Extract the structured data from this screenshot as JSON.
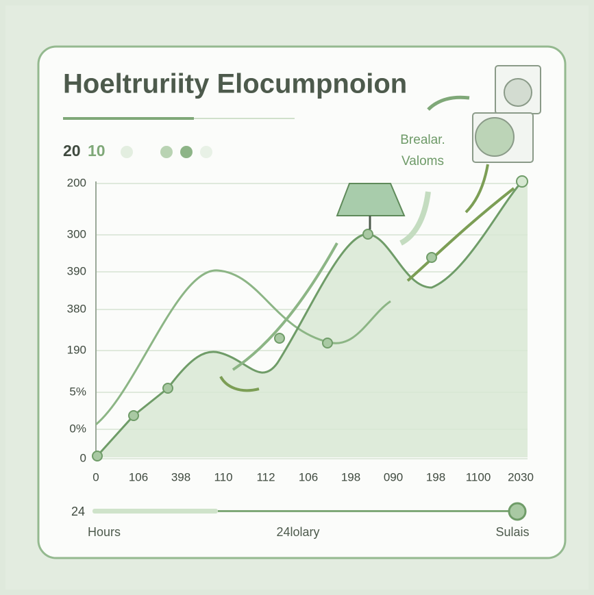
{
  "header": {
    "title": "Hoeltruriity Elocumpnoion",
    "year_a": "20",
    "year_b": "10"
  },
  "annotation": {
    "line1": "Brealar.",
    "line2": "Valoms"
  },
  "y_axis": {
    "labels": [
      "200",
      "300",
      "390",
      "380",
      "190",
      "5%",
      "0%",
      "0"
    ]
  },
  "x_axis": {
    "labels": [
      "0",
      "106",
      "398",
      "110",
      "112",
      "106",
      "198",
      "090",
      "198",
      "1100",
      "2030"
    ]
  },
  "footer": {
    "value": "24",
    "left": "Hours",
    "center": "24lolary",
    "right": "Sulais"
  }
}
